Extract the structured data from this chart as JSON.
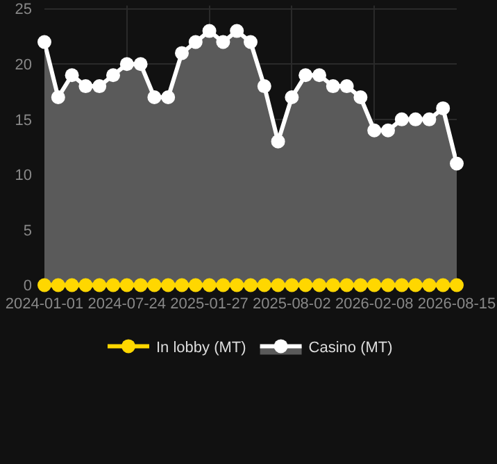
{
  "chart_data": {
    "type": "area",
    "categories": [
      "2024-01-01",
      null,
      null,
      null,
      null,
      null,
      "2024-07-24",
      null,
      null,
      null,
      null,
      null,
      "2025-01-27",
      null,
      null,
      null,
      null,
      null,
      "2025-08-02",
      null,
      null,
      null,
      null,
      null,
      "2026-02-08",
      null,
      null,
      null,
      null,
      null,
      "2026-08-15"
    ],
    "series": [
      {
        "name": "In lobby (MT)",
        "type": "line",
        "color": "#ffd700",
        "values": [
          0,
          0,
          0,
          0,
          0,
          0,
          0,
          0,
          0,
          0,
          0,
          0,
          0,
          0,
          0,
          0,
          0,
          0,
          0,
          0,
          0,
          0,
          0,
          0,
          0,
          0,
          0,
          0,
          0,
          0,
          0
        ]
      },
      {
        "name": "Casino (MT)",
        "color": "#ffffff",
        "values": [
          22,
          17,
          19,
          18,
          18,
          19,
          20,
          20,
          17,
          17,
          21,
          22,
          23,
          22,
          23,
          22,
          18,
          13,
          17,
          19,
          19,
          18,
          18,
          17,
          14,
          14,
          15,
          15,
          15,
          16,
          11
        ]
      }
    ],
    "ylim": [
      -0.6,
      25.3
    ],
    "yticks": [
      0,
      5,
      10,
      15,
      20,
      25
    ],
    "grid": true,
    "legend": "bottom",
    "marker": "circle",
    "line_style": "solid"
  }
}
